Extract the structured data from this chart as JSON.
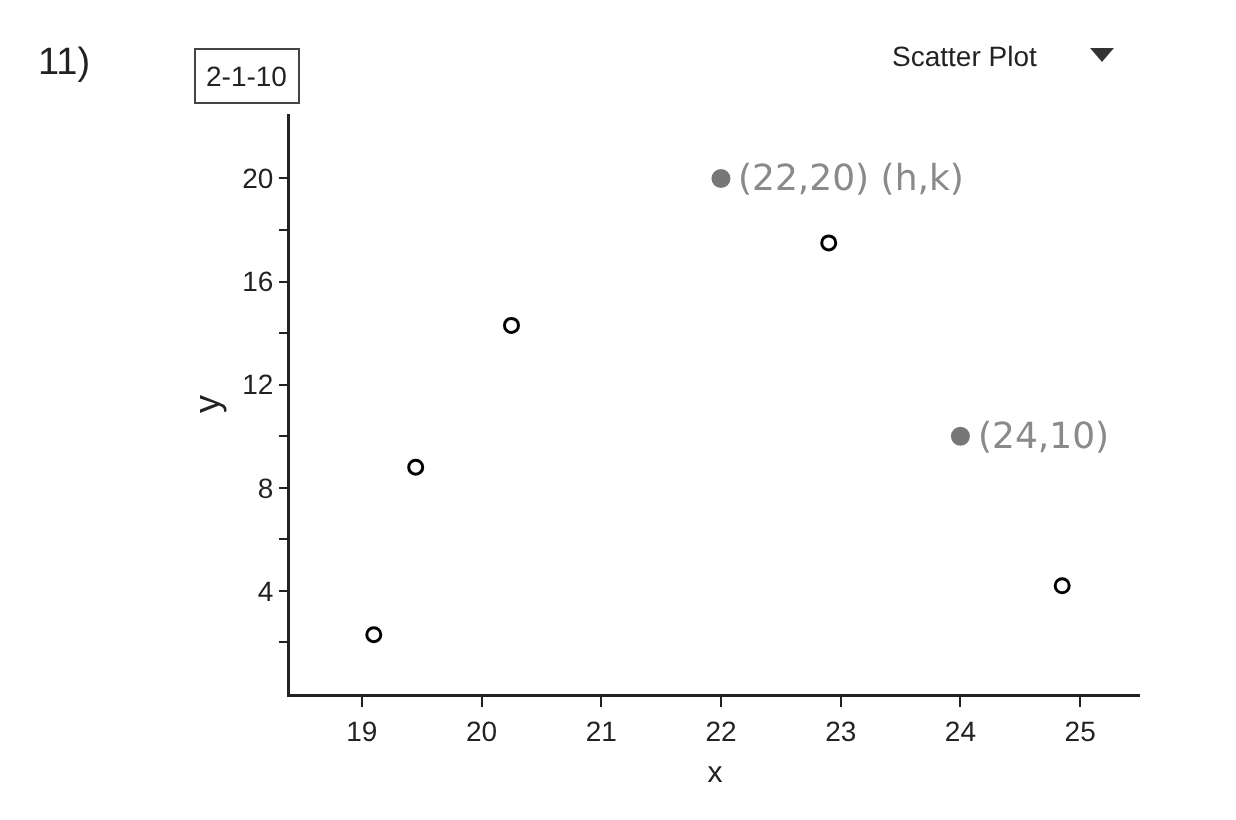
{
  "chart_data": {
    "type": "scatter",
    "xlabel": "x",
    "ylabel": "y",
    "xlim": [
      18.4,
      25.5
    ],
    "xticks": [
      19,
      20,
      21,
      22,
      23,
      24,
      25
    ],
    "ylim": [
      0,
      22.5
    ],
    "yticks": [
      {
        "value": 2,
        "label": null
      },
      4,
      {
        "value": 6,
        "label": null
      },
      8,
      {
        "value": 10,
        "label": null
      },
      12,
      {
        "value": 14,
        "label": null
      },
      16,
      {
        "value": 18,
        "label": null
      },
      20
    ],
    "series": [
      {
        "color": "#000000",
        "x": [
          19.1,
          19.45,
          20.25,
          22.9,
          24.85
        ],
        "values": [
          2.3,
          8.8,
          14.3,
          17.5,
          4.2
        ]
      },
      {
        "color": "#777777",
        "x": [
          22,
          24
        ],
        "values": [
          20,
          10
        ]
      }
    ],
    "annotations": [
      "11)",
      "2-1-10",
      "Scatter Plot",
      {
        "text": "(22,20) (h,k)",
        "x": 22,
        "y": 20
      },
      {
        "text": "(24,10)",
        "x": 24,
        "y": 10
      }
    ],
    "marker": "circle",
    "grid": false
  }
}
